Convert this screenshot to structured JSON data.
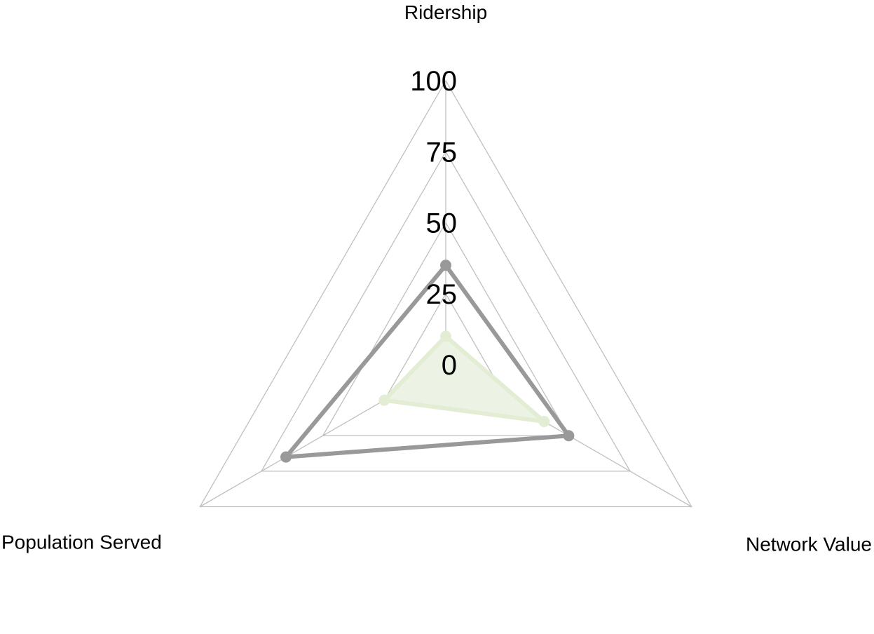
{
  "chart_data": {
    "type": "radar",
    "axes": [
      "Ridership",
      "Network Value",
      "Population Served"
    ],
    "rlim": [
      0,
      100
    ],
    "ticks": [
      0,
      25,
      50,
      75,
      100
    ],
    "tick_labels": [
      "0",
      "25",
      "50",
      "75",
      "100"
    ],
    "grid": true,
    "series": [
      {
        "values": [
          35,
          50,
          65
        ],
        "color": "#999999",
        "filled": false
      },
      {
        "values": [
          10,
          40,
          25
        ],
        "color": "#e2edd4",
        "fill_color": "#edf3e4",
        "filled": true
      }
    ],
    "grid_color": "#c0c0c0"
  }
}
